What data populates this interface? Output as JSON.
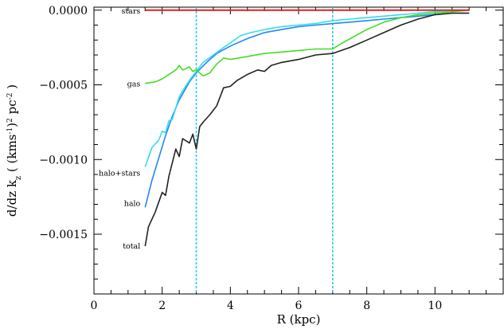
{
  "chart_data": {
    "type": "line",
    "xlabel": "R (kpc)",
    "ylabel": "d/dz k_z ( (kms⁻¹)² pc⁻² )",
    "ylabel_parts": {
      "main": "d/dz k",
      "sub": "z",
      "open": " ( (kms",
      "sup1": "-1",
      "mid": ")",
      "sup2": "2",
      "unit": " pc",
      "sup3": "-2",
      "close": " )"
    },
    "xlim": [
      0,
      12
    ],
    "ylim": [
      -0.0019,
      2e-05
    ],
    "x_ticks": [
      0,
      2,
      4,
      6,
      8,
      10
    ],
    "x_tick_labels": [
      "0",
      "2",
      "4",
      "6",
      "8",
      "10"
    ],
    "y_ticks": [
      0,
      -0.0005,
      -0.001,
      -0.0015
    ],
    "y_tick_labels": [
      "0.0000",
      "−0.0005",
      "−0.0010",
      "−0.0015"
    ],
    "grid": false,
    "vertical_lines": [
      3,
      7
    ],
    "series": [
      {
        "name": "stars",
        "label": "stars",
        "color": "#e02020",
        "x": [
          1.5,
          2,
          3,
          4,
          5,
          6,
          7,
          8,
          9,
          10,
          11
        ],
        "y": [
          0,
          0,
          0,
          0,
          0,
          0,
          0,
          0,
          0,
          0,
          0
        ]
      },
      {
        "name": "gas",
        "label": "gas",
        "color": "#44dd22",
        "x": [
          1.5,
          1.8,
          2.0,
          2.2,
          2.4,
          2.5,
          2.6,
          2.8,
          2.9,
          3.0,
          3.2,
          3.4,
          3.6,
          3.8,
          4.0,
          4.5,
          5.0,
          5.5,
          6.0,
          6.5,
          7.0,
          7.2,
          7.6,
          8.0,
          8.5,
          9.0,
          9.5,
          10.0,
          10.5,
          11.0
        ],
        "y": [
          -0.00049,
          -0.00048,
          -0.00046,
          -0.00043,
          -0.0004,
          -0.00037,
          -0.0004,
          -0.00038,
          -0.00041,
          -0.0004,
          -0.00044,
          -0.00042,
          -0.00036,
          -0.00032,
          -0.00033,
          -0.00031,
          -0.00029,
          -0.00028,
          -0.00027,
          -0.00026,
          -0.00026,
          -0.00023,
          -0.00018,
          -0.00013,
          -8e-05,
          -5e-05,
          -3e-05,
          -2e-05,
          -1e-05,
          0
        ]
      },
      {
        "name": "halo+stars",
        "label": "halo+stars",
        "color": "#33ddee",
        "x": [
          1.5,
          1.7,
          1.9,
          2.0,
          2.1,
          2.2,
          2.3,
          2.5,
          2.6,
          2.8,
          3.0,
          3.2,
          3.5,
          3.8,
          4.0,
          4.3,
          4.6,
          5.0,
          5.5,
          6.0,
          6.5,
          7.0,
          7.5,
          8.0,
          8.5,
          9.0,
          9.5,
          10.0,
          10.5,
          11.0
        ],
        "y": [
          -0.00105,
          -0.00092,
          -0.00087,
          -0.00081,
          -0.00082,
          -0.00074,
          -0.00073,
          -0.00058,
          -0.00054,
          -0.00047,
          -0.00041,
          -0.00035,
          -0.0003,
          -0.00025,
          -0.00022,
          -0.00017,
          -0.00015,
          -0.00013,
          -0.00011,
          -0.0001,
          -9e-05,
          -7e-05,
          -6e-05,
          -5e-05,
          -4e-05,
          -3e-05,
          -2e-05,
          -1e-05,
          -1e-05,
          0
        ]
      },
      {
        "name": "halo",
        "label": "halo",
        "color": "#2288ee",
        "x": [
          1.5,
          1.7,
          1.9,
          2.1,
          2.3,
          2.5,
          2.8,
          3.0,
          3.3,
          3.6,
          4.0,
          4.5,
          5.0,
          5.5,
          6.0,
          6.5,
          7.0,
          7.5,
          8.0,
          8.5,
          9.0,
          9.5,
          10.0,
          10.5,
          11.0
        ],
        "y": [
          -0.00132,
          -0.00114,
          -0.00099,
          -0.00084,
          -0.00071,
          -0.0006,
          -0.00048,
          -0.00042,
          -0.00035,
          -0.00029,
          -0.00024,
          -0.00019,
          -0.00015,
          -0.00013,
          -0.00011,
          -0.0001,
          -9e-05,
          -8e-05,
          -7e-05,
          -6e-05,
          -5e-05,
          -4e-05,
          -3e-05,
          -2e-05,
          -2e-05
        ]
      },
      {
        "name": "total",
        "label": "total",
        "color": "#222222",
        "x": [
          1.5,
          1.6,
          1.8,
          2.0,
          2.1,
          2.2,
          2.4,
          2.5,
          2.6,
          2.8,
          2.9,
          3.0,
          3.1,
          3.2,
          3.4,
          3.6,
          3.8,
          4.0,
          4.2,
          4.5,
          4.8,
          5.0,
          5.2,
          5.5,
          6.0,
          6.5,
          7.0,
          7.5,
          8.0,
          8.5,
          9.0,
          9.5,
          10.0,
          10.5,
          11.0
        ],
        "y": [
          -0.00158,
          -0.00145,
          -0.00135,
          -0.00122,
          -0.00124,
          -0.00111,
          -0.00093,
          -0.00098,
          -0.00086,
          -0.00089,
          -0.00083,
          -0.00093,
          -0.00078,
          -0.00075,
          -0.0007,
          -0.00064,
          -0.00052,
          -0.00051,
          -0.00047,
          -0.00043,
          -0.0004,
          -0.00041,
          -0.00037,
          -0.00035,
          -0.00033,
          -0.0003,
          -0.00029,
          -0.00025,
          -0.0002,
          -0.00015,
          -0.0001,
          -6e-05,
          -3e-05,
          -2e-05,
          -2e-05
        ]
      }
    ]
  }
}
